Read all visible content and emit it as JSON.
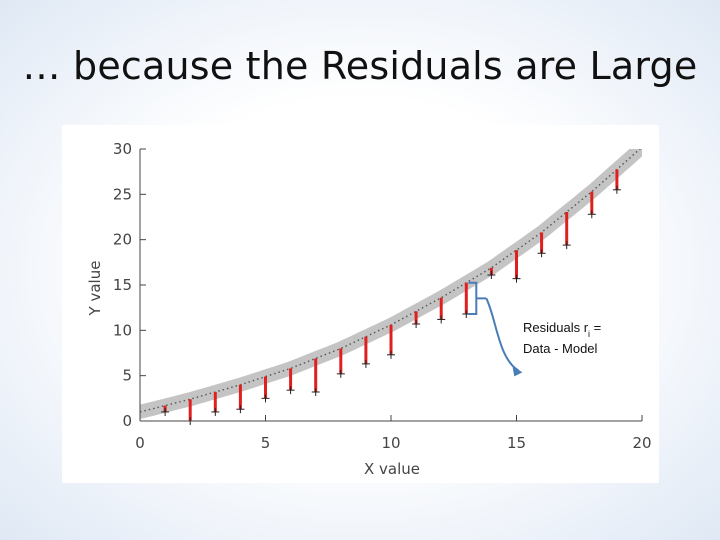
{
  "slide": {
    "title": "… because the Residuals are Large"
  },
  "chart_data": {
    "type": "scatter",
    "xlabel": "X value",
    "ylabel": "Y value",
    "xlim": [
      0,
      20
    ],
    "ylim": [
      0,
      30
    ],
    "xticks": [
      0,
      5,
      10,
      15,
      20
    ],
    "yticks": [
      0,
      5,
      10,
      15,
      20,
      25,
      30
    ],
    "grid": false,
    "model_curve": {
      "x": [
        0,
        2,
        4,
        6,
        8,
        10,
        12,
        14,
        16,
        18,
        20
      ],
      "y": [
        1.0,
        2.4,
        4.0,
        5.8,
        8.0,
        10.6,
        13.6,
        16.9,
        20.8,
        25.3,
        30.2
      ]
    },
    "data_points": {
      "x": [
        1,
        2,
        3,
        4,
        5,
        6,
        7,
        8,
        9,
        10,
        11,
        12,
        13,
        14,
        15,
        16,
        17,
        18,
        19
      ],
      "y": [
        1.0,
        0.0,
        1.0,
        1.3,
        2.5,
        3.4,
        3.2,
        5.2,
        6.3,
        7.3,
        10.7,
        11.2,
        11.8,
        16.1,
        15.7,
        18.5,
        19.4,
        22.8,
        25.5
      ]
    },
    "colors": {
      "model_band": "#c4c4c4",
      "model_dots": "#555555",
      "residual": "#e0201e",
      "data_marker": "#222222",
      "callout_bracket": "#4a7db8"
    },
    "annotation": {
      "line1_prefix": "Residuals r",
      "line1_subscript": "i",
      "line1_suffix": " =",
      "line2": "Data - Model"
    }
  }
}
